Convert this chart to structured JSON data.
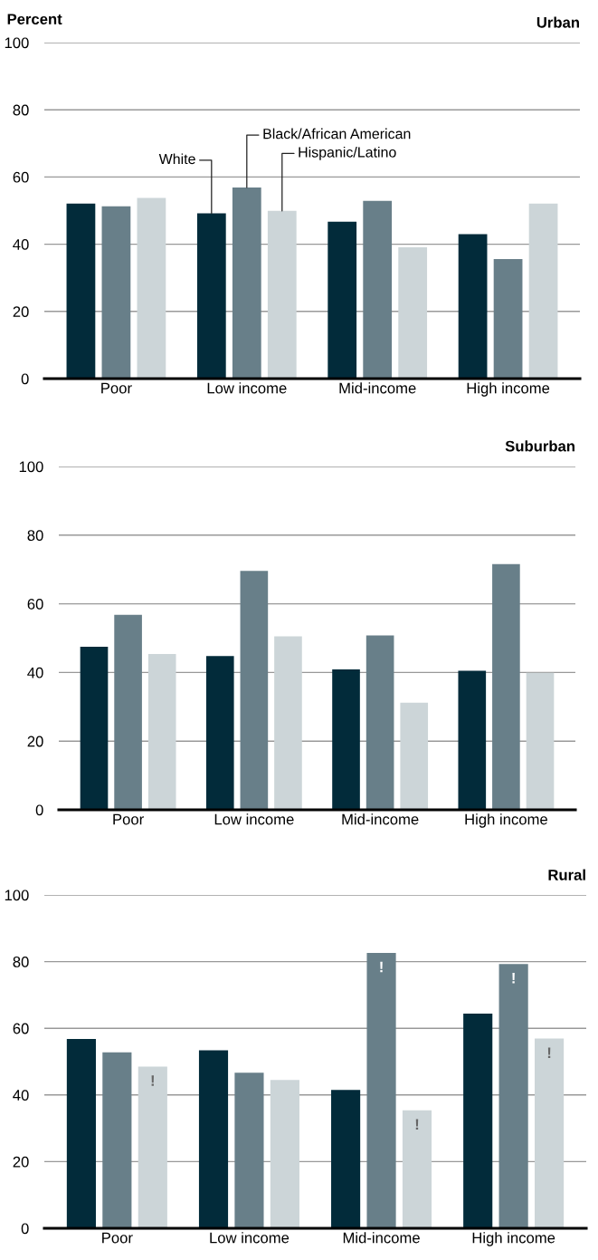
{
  "chart_data": [
    {
      "type": "bar",
      "title": "Urban",
      "ylabel": "Percent",
      "categories": [
        "Poor",
        "Low income",
        "Mid-income",
        "High income"
      ],
      "ylim": [
        0,
        100
      ],
      "yticks": [
        0,
        20,
        40,
        60,
        80,
        100
      ],
      "grid": "y",
      "legend": false,
      "series": [
        {
          "name": "White",
          "color": "#022b3a",
          "values": [
            52.1,
            49.2,
            46.7,
            43.0
          ]
        },
        {
          "name": "Black/African American",
          "color": "#687f89",
          "values": [
            51.3,
            56.9,
            52.9,
            35.6
          ]
        },
        {
          "name": "Hispanic/Latino",
          "color": "#ccd5d8",
          "values": [
            53.8,
            49.9,
            39.1,
            52.1
          ]
        }
      ]
    },
    {
      "type": "bar",
      "title": "Suburban",
      "categories": [
        "Poor",
        "Low income",
        "Mid-income",
        "High income"
      ],
      "ylim": [
        0,
        100
      ],
      "yticks": [
        0,
        20,
        40,
        60,
        80,
        100
      ],
      "grid": "y",
      "legend": false,
      "series": [
        {
          "color": "#022b3a",
          "values": [
            47.5,
            44.8,
            40.9,
            40.5
          ]
        },
        {
          "color": "#687f89",
          "values": [
            56.8,
            69.6,
            50.8,
            71.6
          ]
        },
        {
          "color": "#ccd5d8",
          "values": [
            45.4,
            50.5,
            31.2,
            39.9
          ]
        }
      ]
    },
    {
      "type": "bar",
      "title": "Rural",
      "categories": [
        "Poor",
        "Low income",
        "Mid-income",
        "High income"
      ],
      "ylim": [
        0,
        100
      ],
      "yticks": [
        0,
        20,
        40,
        60,
        80,
        100
      ],
      "grid": "y",
      "legend": false,
      "series": [
        {
          "color": "#022b3a",
          "values": [
            56.8,
            53.4,
            41.5,
            64.4
          ]
        },
        {
          "color": "#687f89",
          "values": [
            52.8,
            46.7,
            82.6,
            79.3
          ],
          "value_labels": [
            null,
            null,
            "!",
            "!"
          ]
        },
        {
          "color": "#ccd5d8",
          "values": [
            48.5,
            44.5,
            35.4,
            56.9
          ],
          "value_labels": [
            "!",
            null,
            "!",
            "!"
          ]
        }
      ]
    }
  ]
}
